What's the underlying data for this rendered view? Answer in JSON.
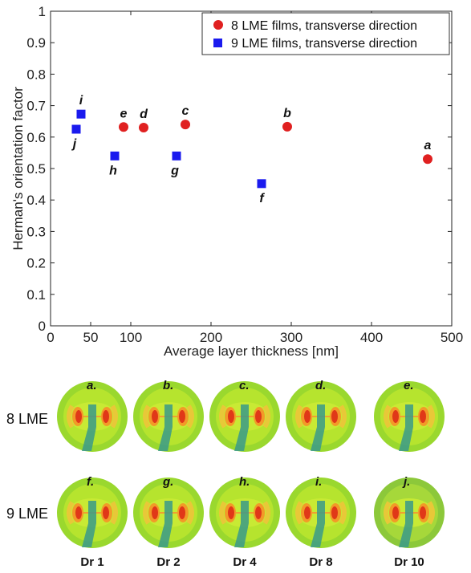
{
  "chart_data": {
    "type": "scatter",
    "xlabel": "Average layer thickness [nm]",
    "ylabel": "Herman's orientation factor",
    "xlim": [
      0,
      500
    ],
    "ylim": [
      0,
      1
    ],
    "x_ticks": [
      "0",
      "100",
      "200",
      "300",
      "400",
      "500"
    ],
    "x_minor_ticks": [
      "50"
    ],
    "y_ticks": [
      "0",
      "0.1",
      "0.2",
      "0.3",
      "0.4",
      "0.5",
      "0.6",
      "0.7",
      "0.8",
      "0.9",
      "1"
    ],
    "grid": false,
    "legend_position": "top-right",
    "series": [
      {
        "name": "8 LME films, transverse direction",
        "marker": "circle",
        "color": "#e02020",
        "points": [
          {
            "x": 470,
            "y": 0.53,
            "label": "a"
          },
          {
            "x": 295,
            "y": 0.633,
            "label": "b"
          },
          {
            "x": 168,
            "y": 0.64,
            "label": "c"
          },
          {
            "x": 116,
            "y": 0.63,
            "label": "d"
          },
          {
            "x": 91,
            "y": 0.632,
            "label": "e"
          }
        ]
      },
      {
        "name": "9 LME films, transverse direction",
        "marker": "square",
        "color": "#1a1aee",
        "points": [
          {
            "x": 263,
            "y": 0.452,
            "label": "f"
          },
          {
            "x": 157,
            "y": 0.54,
            "label": "g"
          },
          {
            "x": 80,
            "y": 0.54,
            "label": "h"
          },
          {
            "x": 38,
            "y": 0.673,
            "label": "i"
          },
          {
            "x": 32,
            "y": 0.625,
            "label": "j"
          }
        ]
      }
    ]
  },
  "patterns": {
    "row_labels": [
      "8 LME",
      "9 LME"
    ],
    "column_labels": [
      "Dr 1",
      "Dr 2",
      "Dr 4",
      "Dr 8",
      "Dr 10"
    ],
    "rows": [
      [
        "a.",
        "b.",
        "c.",
        "d.",
        "e."
      ],
      [
        "f.",
        "g.",
        "h.",
        "i.",
        "j."
      ]
    ]
  }
}
